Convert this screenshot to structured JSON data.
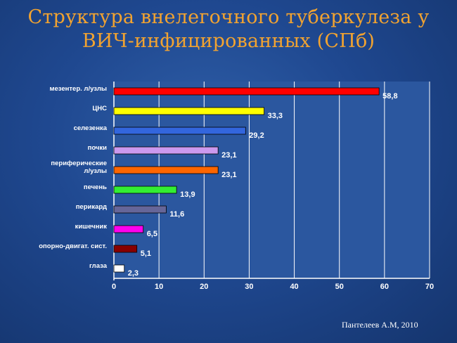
{
  "header": {
    "title_line1": "Структура внелегочного туберкулеза у",
    "title_line2": "ВИЧ-инфицированных (СПб)"
  },
  "footer": {
    "credit": "Пантелеев А.М, 2010"
  },
  "chart_data": {
    "type": "bar",
    "orientation": "horizontal",
    "categories": [
      "мезентер. л/узлы",
      "ЦНС",
      "селезенка",
      "почки",
      [
        "периферические",
        "л/узлы"
      ],
      "печень",
      "перикард",
      "кишечник",
      "опорно-двигат. сист.",
      "глаза"
    ],
    "values": [
      58.8,
      33.3,
      29.2,
      23.1,
      23.1,
      13.9,
      11.6,
      6.5,
      5.1,
      2.3
    ],
    "value_labels": [
      "58,8",
      "33,3",
      "29,2",
      "23,1",
      "23,1",
      "13,9",
      "11,6",
      "6,5",
      "5,1",
      "2,3"
    ],
    "colors": [
      "#ff0000",
      "#ffff00",
      "#3366dd",
      "#cc99ee",
      "#ff6600",
      "#33ee33",
      "#666699",
      "#ff00ee",
      "#880000",
      "#ffffff"
    ],
    "xlim": [
      0,
      70
    ],
    "xticks": [
      0,
      10,
      20,
      30,
      40,
      50,
      60,
      70
    ],
    "grid": true,
    "legend": "none",
    "title": "",
    "xlabel": "",
    "ylabel": ""
  }
}
